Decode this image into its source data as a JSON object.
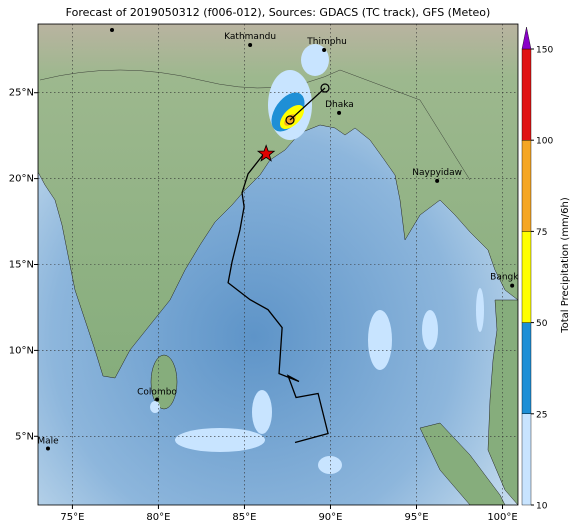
{
  "title": "Forecast of 2019050312 (f006-012), Sources: GDACS (TC track), GFS (Meteo)",
  "map": {
    "lonlim": [
      73,
      100.9
    ],
    "latlim": [
      1,
      29
    ],
    "lonticks": [
      {
        "value": 75,
        "label": "75°E"
      },
      {
        "value": 80,
        "label": "80°E"
      },
      {
        "value": 85,
        "label": "85°E"
      },
      {
        "value": 90,
        "label": "90°E"
      },
      {
        "value": 95,
        "label": "95°E"
      },
      {
        "value": 100,
        "label": "100°E"
      }
    ],
    "latticks": [
      {
        "value": 5,
        "label": "5°N"
      },
      {
        "value": 10,
        "label": "10°N"
      },
      {
        "value": 15,
        "label": "15°N"
      },
      {
        "value": 20,
        "label": "20°N"
      },
      {
        "value": 25,
        "label": "25°N"
      }
    ],
    "grid": true,
    "cities": [
      {
        "name": "Kathmandu",
        "lon": 85.33,
        "lat": 27.78
      },
      {
        "name": "Thimphu",
        "lon": 89.63,
        "lat": 27.49
      },
      {
        "name": "Dhaka",
        "lon": 90.5,
        "lat": 23.83
      },
      {
        "name": "Naypyidaw",
        "lon": 96.2,
        "lat": 19.87
      },
      {
        "name": "Bangko",
        "lon": 100.56,
        "lat": 13.77
      },
      {
        "name": "Colombo",
        "lon": 79.92,
        "lat": 7.14
      },
      {
        "name": "Male",
        "lon": 73.58,
        "lat": 4.29
      }
    ],
    "track": {
      "lon": [
        87.94,
        89.86,
        89.28,
        88.0,
        87.53,
        88.17,
        87.01,
        87.19,
        86.37,
        85.33,
        84.05,
        84.28,
        84.74,
        84.98,
        84.86,
        85.21,
        86.08
      ],
      "lat": [
        4.64,
        5.16,
        7.49,
        7.26,
        8.53,
        8.19,
        8.65,
        11.33,
        12.37,
        12.95,
        13.94,
        15.16,
        17.02,
        18.36,
        19.17,
        20.28,
        21.38
      ]
    },
    "storm": {
      "lon": 86.26,
      "lat": 21.44
    }
  },
  "colorbar": {
    "label": "Total Precipitation (mm/6h)",
    "ticks": [
      10,
      25,
      50,
      75,
      100,
      150
    ],
    "colors": [
      "#c8e4ff",
      "#1e8fd6",
      "#ffff00",
      "#f5a623",
      "#e01414"
    ],
    "extend_color": "#8a00c8"
  }
}
